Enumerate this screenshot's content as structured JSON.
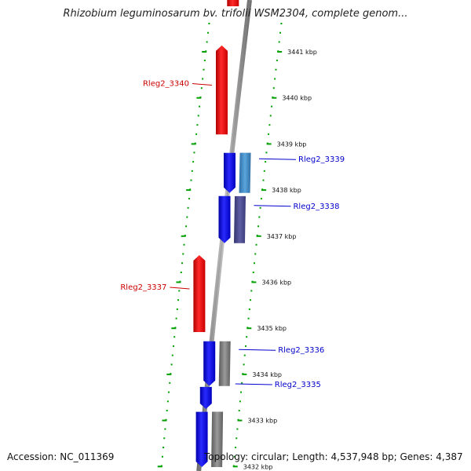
{
  "title": "Rhizobium leguminosarum bv. trifolii WSM2304, complete genom...",
  "accession_label": "Accession: NC_011369",
  "topology_label": "Topology: circular; Length: 4,537,948 bp; Genes: 4,387",
  "colors": {
    "forward_gene": "#ff0000",
    "reverse_gene": "#0000ff",
    "reverse_label": "#0000cc",
    "forward_label": "#cc0000",
    "feature_light_blue": "#3f88c5",
    "feature_slate": "#4a4a8c",
    "feature_grey": "#777777",
    "backbone": "#8c8c8c",
    "ruler_tick": "#00a000"
  },
  "ruler": [
    {
      "label": "3441 kbp",
      "kbp": 3441
    },
    {
      "label": "3440 kbp",
      "kbp": 3440
    },
    {
      "label": "3439 kbp",
      "kbp": 3439
    },
    {
      "label": "3438 kbp",
      "kbp": 3438
    },
    {
      "label": "3437 kbp",
      "kbp": 3437
    },
    {
      "label": "3436 kbp",
      "kbp": 3436
    },
    {
      "label": "3435 kbp",
      "kbp": 3435
    },
    {
      "label": "3434 kbp",
      "kbp": 3434
    },
    {
      "label": "3433 kbp",
      "kbp": 3433
    },
    {
      "label": "3432 kbp",
      "kbp": 3432
    }
  ],
  "genes": [
    {
      "name": "Rleg2_3340",
      "strand": "+",
      "start_kbp": 3438.22,
      "end_kbp": 3440.15
    },
    {
      "name": "Rleg2_3339",
      "strand": "-",
      "start_kbp": 3436.95,
      "end_kbp": 3437.82
    },
    {
      "name": "Rleg2_3338",
      "strand": "-",
      "start_kbp": 3435.86,
      "end_kbp": 3436.88
    },
    {
      "name": "Rleg2_3337",
      "strand": "+",
      "start_kbp": 3433.93,
      "end_kbp": 3435.6
    },
    {
      "name": "Rleg2_3336",
      "strand": "-",
      "start_kbp": 3432.76,
      "end_kbp": 3433.73
    },
    {
      "name": "Rleg2_3335",
      "strand": "-",
      "start_kbp": 3432.26,
      "end_kbp": 3432.74
    },
    {
      "name": "",
      "strand": "-",
      "start_kbp": 3431.0,
      "end_kbp": 3432.2
    },
    {
      "name": "",
      "strand": "+",
      "start_kbp": 3441.0,
      "end_kbp": 3441.5
    }
  ],
  "features": [
    {
      "color": "feature_light_blue",
      "start_kbp": 3436.95,
      "end_kbp": 3437.82
    },
    {
      "color": "feature_slate",
      "start_kbp": 3435.86,
      "end_kbp": 3436.88
    },
    {
      "color": "feature_grey",
      "start_kbp": 3432.76,
      "end_kbp": 3433.73
    },
    {
      "color": "feature_grey",
      "start_kbp": 3431.0,
      "end_kbp": 3432.2
    }
  ]
}
